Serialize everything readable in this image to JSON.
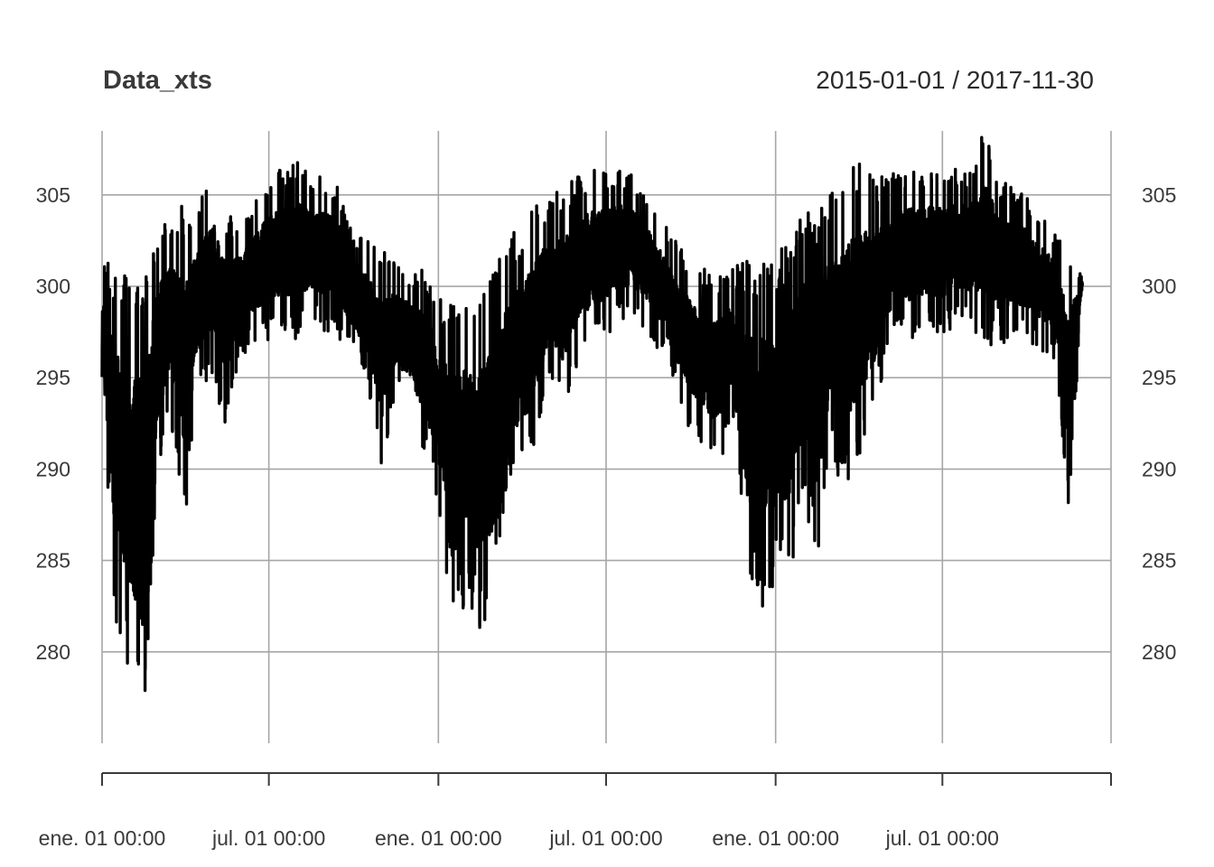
{
  "chart_data": {
    "type": "line",
    "title": "Data_xts",
    "date_range": "2015-01-01 / 2017-11-30",
    "xlabel": "",
    "ylabel": "",
    "x_start": "2015-01-01",
    "x_end": "2017-11-30",
    "xlim": [
      "2015-01-01",
      "2017-12-31"
    ],
    "ylim": [
      275,
      308.5
    ],
    "y_ticks": [
      "280",
      "285",
      "290",
      "295",
      "300",
      "305"
    ],
    "x_tick_labels": [
      "ene. 01 00:00",
      "jul. 01 00:00",
      "ene. 01 00:00",
      "jul. 01 00:00",
      "ene. 01 00:00",
      "jul. 01 00:00"
    ],
    "grid": true,
    "series": [
      {
        "color": "#000000",
        "x": [
          "2015-01-01",
          "2015-01-15",
          "2015-02-01",
          "2015-02-15",
          "2015-03-01",
          "2015-03-15",
          "2015-04-01",
          "2015-04-15",
          "2015-05-01",
          "2015-05-15",
          "2015-06-01",
          "2015-06-15",
          "2015-07-01",
          "2015-07-15",
          "2015-08-01",
          "2015-08-15",
          "2015-09-01",
          "2015-09-15",
          "2015-10-01",
          "2015-10-15",
          "2015-11-01",
          "2015-11-15",
          "2015-12-01",
          "2015-12-15",
          "2016-01-01",
          "2016-01-15",
          "2016-02-01",
          "2016-02-15",
          "2016-03-01",
          "2016-03-15",
          "2016-04-01",
          "2016-04-15",
          "2016-05-01",
          "2016-05-15",
          "2016-06-01",
          "2016-06-15",
          "2016-07-01",
          "2016-07-15",
          "2016-08-01",
          "2016-08-15",
          "2016-09-01",
          "2016-09-15",
          "2016-10-01",
          "2016-10-15",
          "2016-11-01",
          "2016-11-15",
          "2016-12-01",
          "2016-12-15",
          "2017-01-01",
          "2017-01-15",
          "2017-02-01",
          "2017-02-15",
          "2017-03-01",
          "2017-03-15",
          "2017-04-01",
          "2017-04-15",
          "2017-05-01",
          "2017-05-15",
          "2017-06-01",
          "2017-06-15",
          "2017-07-01",
          "2017-07-15",
          "2017-08-01",
          "2017-08-15",
          "2017-09-01",
          "2017-09-15",
          "2017-10-01",
          "2017-10-15",
          "2017-11-01",
          "2017-11-15",
          "2017-11-30"
        ],
        "low": [
          294,
          282,
          278,
          275.2,
          289,
          293,
          287,
          294,
          295,
          292,
          296,
          297,
          297,
          297.5,
          297,
          298,
          297.5,
          297,
          296,
          295,
          290,
          294,
          293,
          291,
          288,
          280.5,
          283,
          281,
          282,
          289,
          289,
          291,
          295,
          293,
          296,
          296.5,
          297,
          298,
          298,
          297.5,
          296,
          294,
          292,
          291,
          290,
          293,
          284.5,
          282,
          283.5,
          284,
          288,
          284,
          291,
          288,
          290,
          292,
          296,
          297,
          297,
          297.5,
          297,
          298,
          297.5,
          297,
          296.5,
          297,
          297,
          296.5,
          296,
          287.5,
          300
        ],
        "high": [
          301.5,
          301,
          300.5,
          301,
          303,
          304,
          304.5,
          304.5,
          306.5,
          304,
          303.5,
          304.5,
          306,
          306.5,
          307,
          306,
          306,
          305.5,
          303,
          302.5,
          302,
          301.5,
          301,
          301,
          299.5,
          299.5,
          299.5,
          300,
          301,
          302.5,
          303.5,
          304.5,
          305,
          305.5,
          306,
          306.5,
          306.5,
          306.5,
          306,
          305,
          303.5,
          302.5,
          301.5,
          301,
          300.5,
          301,
          301.5,
          302,
          301.5,
          303,
          304.5,
          304,
          305,
          306,
          307.5,
          306,
          306,
          306.5,
          306.5,
          306.5,
          306.5,
          306.5,
          306.5,
          308.5,
          306,
          305.5,
          305,
          304,
          303,
          302,
          300.5
        ]
      }
    ]
  }
}
